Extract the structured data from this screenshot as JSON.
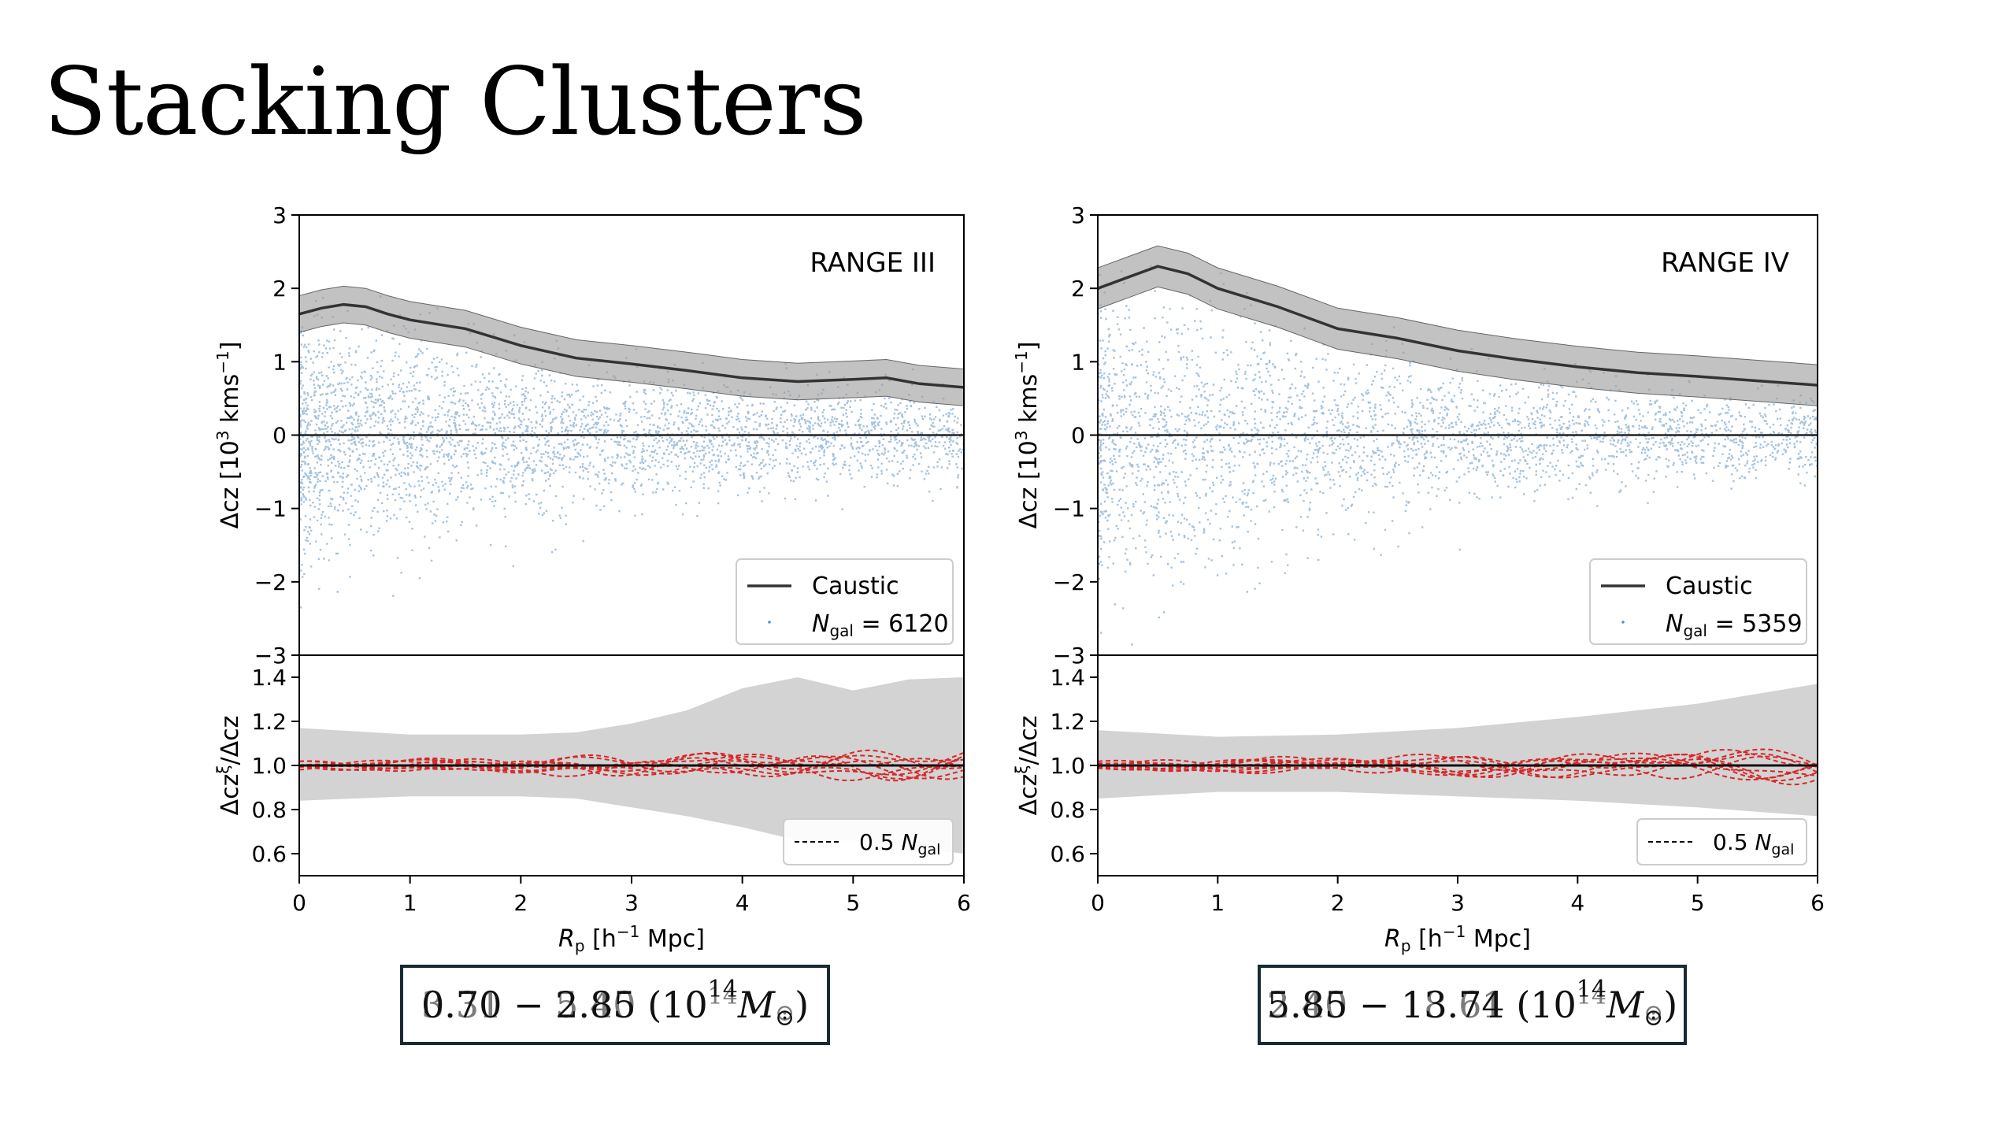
{
  "slide": {
    "title": "Stacking Clusters"
  },
  "colors": {
    "points": "#5b8fc2",
    "caustic": "#333333",
    "band": "#bdbdbd",
    "ratio_band": "#d3d3d3",
    "ratio_lines": "#d62728",
    "axis": "#000000",
    "box_border": "#1a2a33"
  },
  "mass_boxes": [
    {
      "text_primary": "0.70 − 2.85 (10",
      "text_ghost": "3.31 − 5.40 (10",
      "exp": "14",
      "unit": "M",
      "sub": "⊙"
    },
    {
      "text_primary": "5.85 − 13.74 (10",
      "text_ghost": "2.40 − 18.61 (10",
      "exp": "14",
      "unit": "M",
      "sub": "⊙"
    }
  ],
  "chart_data": [
    {
      "type": "scatter",
      "panel_label": "RANGE III",
      "xlabel": "R_p [h⁻¹ Mpc]",
      "ylabel_top": "Δcz [10³ kms⁻¹]",
      "ylabel_bottom": "Δcz^ξ/Δcz",
      "xlim": [
        0,
        6
      ],
      "ylim_top": [
        -3,
        3
      ],
      "ylim_bottom": [
        0.5,
        1.5
      ],
      "xticks": [
        "0",
        "1",
        "2",
        "3",
        "4",
        "5",
        "6"
      ],
      "yticks_top": [
        "3",
        "2",
        "1",
        "0",
        "−1",
        "−2",
        "−3"
      ],
      "yticks_bottom": [
        "1.4",
        "1.2",
        "1.0",
        "0.8",
        "0.6"
      ],
      "legend_top": {
        "line_label": "Caustic",
        "points_label": "N_gal = 6120",
        "placement": "lower-right"
      },
      "legend_bottom": {
        "line_label": "0.5 N_gal",
        "placement": "lower-right"
      },
      "caustic": {
        "x": [
          0,
          0.2,
          0.4,
          0.6,
          0.8,
          1.0,
          1.5,
          2.0,
          2.5,
          3.0,
          3.5,
          4.0,
          4.5,
          5.0,
          5.3,
          5.6,
          6.0
        ],
        "y": [
          1.65,
          1.73,
          1.78,
          1.75,
          1.65,
          1.57,
          1.45,
          1.22,
          1.05,
          0.97,
          0.88,
          0.78,
          0.73,
          0.76,
          0.78,
          0.7,
          0.65
        ],
        "band_half_width": 0.25
      },
      "ratio_band": {
        "x": [
          0,
          1,
          2,
          2.5,
          3,
          3.5,
          4,
          4.5,
          5,
          5.5,
          6
        ],
        "upper": [
          1.17,
          1.14,
          1.14,
          1.15,
          1.19,
          1.25,
          1.35,
          1.4,
          1.34,
          1.39,
          1.4
        ],
        "lower": [
          0.84,
          0.86,
          0.86,
          0.85,
          0.81,
          0.77,
          0.72,
          0.66,
          0.66,
          0.63,
          0.6
        ]
      },
      "scatter": {
        "n_points": 6120,
        "spread_profile_x": [
          0,
          1,
          2,
          3,
          4,
          5,
          6
        ],
        "spread_sigma": [
          0.8,
          0.72,
          0.55,
          0.45,
          0.38,
          0.32,
          0.28
        ]
      }
    },
    {
      "type": "scatter",
      "panel_label": "RANGE IV",
      "xlabel": "R_p [h⁻¹ Mpc]",
      "ylabel_top": "Δcz [10³ kms⁻¹]",
      "ylabel_bottom": "Δcz^ξ/Δcz",
      "xlim": [
        0,
        6
      ],
      "ylim_top": [
        -3,
        3
      ],
      "ylim_bottom": [
        0.5,
        1.5
      ],
      "xticks": [
        "0",
        "1",
        "2",
        "3",
        "4",
        "5",
        "6"
      ],
      "yticks_top": [
        "3",
        "2",
        "1",
        "0",
        "−1",
        "−2",
        "−3"
      ],
      "yticks_bottom": [
        "1.4",
        "1.2",
        "1.0",
        "0.8",
        "0.6"
      ],
      "legend_top": {
        "line_label": "Caustic",
        "points_label": "N_gal = 5359",
        "placement": "lower-right"
      },
      "legend_bottom": {
        "line_label": "0.5 N_gal",
        "placement": "lower-right"
      },
      "caustic": {
        "x": [
          0,
          0.25,
          0.5,
          0.75,
          1.0,
          1.5,
          2.0,
          2.5,
          3.0,
          3.5,
          4.0,
          4.5,
          5.0,
          5.5,
          6.0
        ],
        "y": [
          2.0,
          2.15,
          2.3,
          2.2,
          2.0,
          1.75,
          1.45,
          1.32,
          1.15,
          1.03,
          0.93,
          0.85,
          0.8,
          0.74,
          0.68
        ],
        "band_half_width": 0.28
      },
      "ratio_band": {
        "x": [
          0,
          1,
          2,
          3,
          4,
          5,
          6
        ],
        "upper": [
          1.16,
          1.13,
          1.14,
          1.17,
          1.22,
          1.28,
          1.37
        ],
        "lower": [
          0.85,
          0.88,
          0.88,
          0.86,
          0.84,
          0.81,
          0.77
        ]
      },
      "scatter": {
        "n_points": 5359,
        "spread_profile_x": [
          0,
          1,
          2,
          3,
          4,
          5,
          6
        ],
        "spread_sigma": [
          1.0,
          0.85,
          0.6,
          0.45,
          0.36,
          0.3,
          0.26
        ]
      }
    }
  ]
}
